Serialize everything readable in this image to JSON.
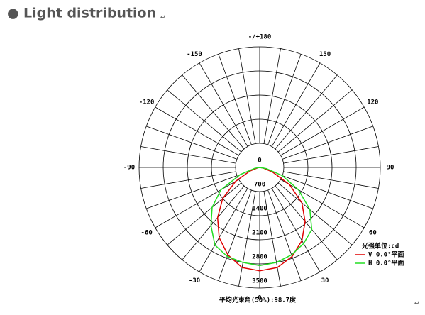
{
  "header": {
    "bullet": "●",
    "title": "Light distribution",
    "para_mark": "↵"
  },
  "chart_data": {
    "type": "polar",
    "theta": [
      -90,
      -80,
      -70,
      -60,
      -50,
      -40,
      -30,
      -20,
      -10,
      0,
      10,
      20,
      30,
      40,
      50,
      60,
      70,
      80,
      90
    ],
    "series": [
      {
        "name": "V 0.0°平面",
        "color": "#e00000",
        "values": [
          0,
          50,
          300,
          800,
          1400,
          1900,
          2350,
          2700,
          2950,
          3000,
          2950,
          2750,
          2450,
          2050,
          1600,
          1000,
          400,
          100,
          0
        ]
      },
      {
        "name": "H 0.0°平面",
        "color": "#22dd22",
        "values": [
          0,
          150,
          600,
          1300,
          1800,
          2200,
          2600,
          2750,
          2800,
          2850,
          2800,
          2700,
          2550,
          2350,
          1900,
          1300,
          700,
          200,
          0
        ]
      }
    ],
    "rlim": [
      0,
      3500
    ],
    "rticks": [
      0,
      700,
      1400,
      2100,
      2800,
      3500
    ],
    "thetaticks": [
      {
        "value": 180,
        "label": "-/+180"
      },
      150,
      120,
      90,
      60,
      30,
      0,
      -30,
      -60,
      -90,
      -120,
      -150
    ],
    "legend_title": "光强单位:cd",
    "footnote": "平均光束角(50%):98.7度"
  }
}
